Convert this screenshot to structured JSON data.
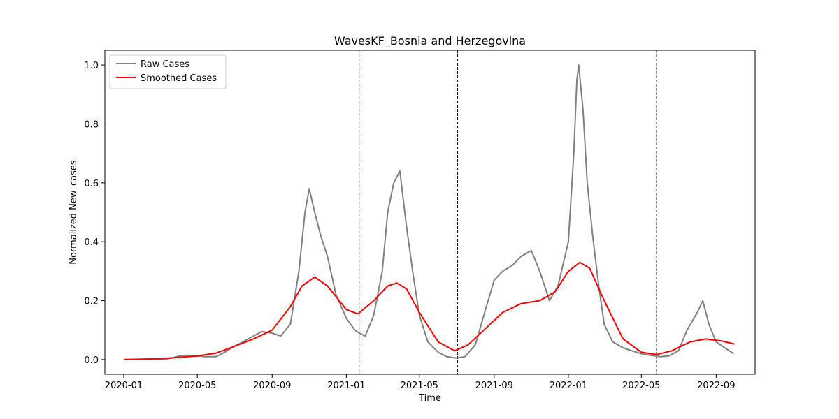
{
  "chart_data": {
    "type": "line",
    "title": "WavesKF_Bosnia and Herzegovina",
    "xlabel": "Time",
    "ylabel": "Normalized New_cases",
    "x_ticks": [
      "2020-01",
      "2020-05",
      "2020-09",
      "2021-01",
      "2021-05",
      "2021-09",
      "2022-01",
      "2022-05",
      "2022-09"
    ],
    "y_ticks": [
      "0.0",
      "0.2",
      "0.4",
      "0.6",
      "0.8",
      "1.0"
    ],
    "ylim": [
      -0.05,
      1.05
    ],
    "xlim": [
      "2019-12-01",
      "2022-11-04"
    ],
    "grid": false,
    "legend": "upper left",
    "wave_boundaries": [
      "2021-01-22",
      "2021-07-03",
      "2022-05-26"
    ],
    "series": [
      {
        "name": "Raw Cases",
        "color": "#808080",
        "points": [
          [
            "2020-01-01",
            0.0
          ],
          [
            "2020-02-15",
            0.0
          ],
          [
            "2020-03-05",
            0.0
          ],
          [
            "2020-03-20",
            0.005
          ],
          [
            "2020-04-01",
            0.012
          ],
          [
            "2020-04-15",
            0.015
          ],
          [
            "2020-05-01",
            0.012
          ],
          [
            "2020-05-15",
            0.01
          ],
          [
            "2020-06-01",
            0.01
          ],
          [
            "2020-06-15",
            0.025
          ],
          [
            "2020-07-01",
            0.045
          ],
          [
            "2020-07-15",
            0.06
          ],
          [
            "2020-08-01",
            0.08
          ],
          [
            "2020-08-15",
            0.095
          ],
          [
            "2020-09-01",
            0.09
          ],
          [
            "2020-09-15",
            0.08
          ],
          [
            "2020-10-01",
            0.12
          ],
          [
            "2020-10-15",
            0.3
          ],
          [
            "2020-10-25",
            0.5
          ],
          [
            "2020-11-01",
            0.58
          ],
          [
            "2020-11-10",
            0.5
          ],
          [
            "2020-11-20",
            0.42
          ],
          [
            "2020-12-01",
            0.35
          ],
          [
            "2020-12-15",
            0.22
          ],
          [
            "2021-01-01",
            0.14
          ],
          [
            "2021-01-15",
            0.1
          ],
          [
            "2021-01-22",
            0.09
          ],
          [
            "2021-02-01",
            0.08
          ],
          [
            "2021-02-15",
            0.15
          ],
          [
            "2021-03-01",
            0.3
          ],
          [
            "2021-03-10",
            0.5
          ],
          [
            "2021-03-20",
            0.6
          ],
          [
            "2021-03-30",
            0.64
          ],
          [
            "2021-04-10",
            0.45
          ],
          [
            "2021-04-20",
            0.3
          ],
          [
            "2021-05-01",
            0.15
          ],
          [
            "2021-05-15",
            0.06
          ],
          [
            "2021-06-01",
            0.025
          ],
          [
            "2021-06-15",
            0.01
          ],
          [
            "2021-07-01",
            0.005
          ],
          [
            "2021-07-15",
            0.01
          ],
          [
            "2021-08-01",
            0.05
          ],
          [
            "2021-08-15",
            0.15
          ],
          [
            "2021-09-01",
            0.27
          ],
          [
            "2021-09-15",
            0.3
          ],
          [
            "2021-10-01",
            0.32
          ],
          [
            "2021-10-15",
            0.35
          ],
          [
            "2021-11-01",
            0.37
          ],
          [
            "2021-11-15",
            0.3
          ],
          [
            "2021-12-01",
            0.2
          ],
          [
            "2021-12-15",
            0.25
          ],
          [
            "2022-01-01",
            0.4
          ],
          [
            "2022-01-10",
            0.7
          ],
          [
            "2022-01-15",
            0.95
          ],
          [
            "2022-01-18",
            1.0
          ],
          [
            "2022-01-25",
            0.85
          ],
          [
            "2022-02-01",
            0.6
          ],
          [
            "2022-02-10",
            0.42
          ],
          [
            "2022-02-20",
            0.25
          ],
          [
            "2022-03-01",
            0.12
          ],
          [
            "2022-03-15",
            0.06
          ],
          [
            "2022-04-01",
            0.04
          ],
          [
            "2022-04-15",
            0.03
          ],
          [
            "2022-05-01",
            0.02
          ],
          [
            "2022-05-15",
            0.015
          ],
          [
            "2022-06-01",
            0.01
          ],
          [
            "2022-06-15",
            0.012
          ],
          [
            "2022-07-01",
            0.03
          ],
          [
            "2022-07-15",
            0.1
          ],
          [
            "2022-08-01",
            0.16
          ],
          [
            "2022-08-10",
            0.2
          ],
          [
            "2022-08-20",
            0.12
          ],
          [
            "2022-09-01",
            0.06
          ],
          [
            "2022-09-15",
            0.04
          ],
          [
            "2022-09-30",
            0.02
          ]
        ]
      },
      {
        "name": "Smoothed Cases",
        "color": "#ff0000",
        "points": [
          [
            "2020-01-01",
            0.0
          ],
          [
            "2020-03-01",
            0.003
          ],
          [
            "2020-05-01",
            0.012
          ],
          [
            "2020-06-01",
            0.022
          ],
          [
            "2020-07-01",
            0.045
          ],
          [
            "2020-08-01",
            0.07
          ],
          [
            "2020-09-01",
            0.1
          ],
          [
            "2020-10-01",
            0.18
          ],
          [
            "2020-10-20",
            0.25
          ],
          [
            "2020-11-10",
            0.28
          ],
          [
            "2020-12-01",
            0.25
          ],
          [
            "2021-01-01",
            0.17
          ],
          [
            "2021-01-20",
            0.155
          ],
          [
            "2021-02-15",
            0.2
          ],
          [
            "2021-03-10",
            0.25
          ],
          [
            "2021-03-25",
            0.26
          ],
          [
            "2021-04-10",
            0.24
          ],
          [
            "2021-05-01",
            0.16
          ],
          [
            "2021-06-01",
            0.06
          ],
          [
            "2021-06-28",
            0.03
          ],
          [
            "2021-07-20",
            0.05
          ],
          [
            "2021-08-15",
            0.1
          ],
          [
            "2021-09-15",
            0.16
          ],
          [
            "2021-10-15",
            0.19
          ],
          [
            "2021-11-15",
            0.2
          ],
          [
            "2021-12-10",
            0.23
          ],
          [
            "2022-01-01",
            0.3
          ],
          [
            "2022-01-20",
            0.33
          ],
          [
            "2022-02-05",
            0.31
          ],
          [
            "2022-03-01",
            0.2
          ],
          [
            "2022-04-01",
            0.07
          ],
          [
            "2022-05-01",
            0.025
          ],
          [
            "2022-05-26",
            0.017
          ],
          [
            "2022-06-20",
            0.03
          ],
          [
            "2022-07-20",
            0.06
          ],
          [
            "2022-08-15",
            0.07
          ],
          [
            "2022-09-10",
            0.063
          ],
          [
            "2022-10-01",
            0.053
          ]
        ]
      }
    ]
  }
}
